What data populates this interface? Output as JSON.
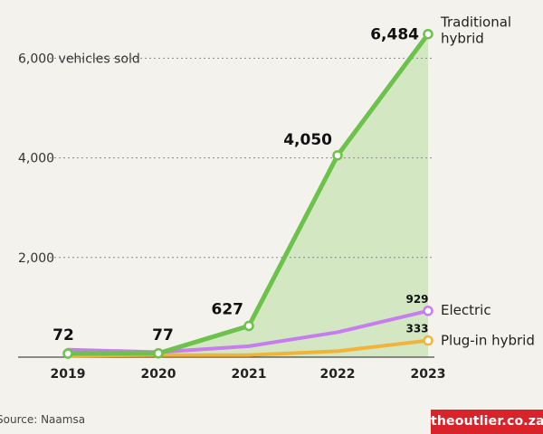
{
  "chart_data": {
    "type": "line",
    "title": "",
    "xlabel": "",
    "ylabel": "vehicles sold",
    "categories": [
      "2019",
      "2020",
      "2021",
      "2022",
      "2023"
    ],
    "ylim": [
      0,
      6800
    ],
    "yticks": [
      {
        "value": 2000,
        "label": "2,000"
      },
      {
        "value": 4000,
        "label": "4,000"
      },
      {
        "value": 6000,
        "label": "6,000 vehicles sold"
      }
    ],
    "grid": "horizontal-dashed",
    "series": [
      {
        "name": "Traditional hybrid",
        "name_lines": [
          "Traditional",
          "hybrid"
        ],
        "values": [
          72,
          77,
          627,
          4050,
          6484
        ],
        "point_labels": [
          "72",
          "77",
          "627",
          "4,050",
          "6,484"
        ],
        "color": "#6cc24a",
        "fill": "#d3e8c2"
      },
      {
        "name": "Electric",
        "name_lines": [
          "Electric"
        ],
        "values": [
          150,
          100,
          220,
          500,
          929
        ],
        "point_labels": [
          "",
          "",
          "",
          "",
          "929"
        ],
        "color": "#c77cf0"
      },
      {
        "name": "Plug-in hybrid",
        "name_lines": [
          "Plug-in hybrid"
        ],
        "values": [
          30,
          40,
          40,
          120,
          333
        ],
        "point_labels": [
          "",
          "",
          "",
          "",
          "333"
        ],
        "color": "#f2b33a"
      }
    ]
  },
  "footer": {
    "source": "Source: Naamsa",
    "brand": "theoutlier.co.za"
  }
}
